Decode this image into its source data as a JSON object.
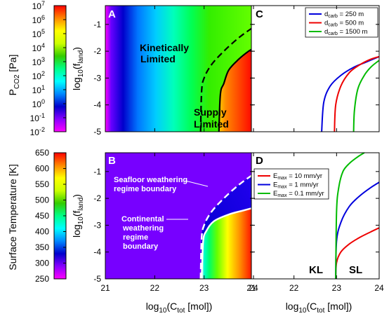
{
  "colorbars": {
    "pco2": {
      "label_main": "P",
      "label_sub": "CO2",
      "label_unit": " [Pa]",
      "ticks": [
        {
          "base": "10",
          "exp": "7",
          "value": 7
        },
        {
          "base": "10",
          "exp": "6",
          "value": 6
        },
        {
          "base": "10",
          "exp": "5",
          "value": 5
        },
        {
          "base": "10",
          "exp": "4",
          "value": 4
        },
        {
          "base": "10",
          "exp": "3",
          "value": 3
        },
        {
          "base": "10",
          "exp": "2",
          "value": 2
        },
        {
          "base": "10",
          "exp": "1",
          "value": 1
        },
        {
          "base": "10",
          "exp": "0",
          "value": 0
        },
        {
          "base": "10",
          "exp": "-1",
          "value": -1
        },
        {
          "base": "10",
          "exp": "-2",
          "value": -2
        }
      ],
      "range_log10": [
        -2,
        7
      ],
      "colors": [
        "#ff00ff",
        "#8800ff",
        "#0000cc",
        "#0088ff",
        "#00ffff",
        "#00ff88",
        "#33cc00",
        "#ccff00",
        "#ffff00",
        "#ff8800",
        "#ff0000"
      ]
    },
    "temperature": {
      "label": "Surface Temperature [K]",
      "ticks": [
        "650",
        "600",
        "550",
        "500",
        "450",
        "400",
        "350",
        "300",
        "250"
      ],
      "range": [
        250,
        650
      ],
      "colors": [
        "#ff00ff",
        "#8800ff",
        "#0000cc",
        "#0088ff",
        "#00ffff",
        "#00ff88",
        "#33cc00",
        "#ccff00",
        "#ffff00",
        "#ff8800",
        "#ff0000"
      ]
    }
  },
  "axes": {
    "xlabel_main": "log",
    "xlabel_base": "10",
    "xlabel_rest": "(C",
    "xlabel_sub": "tot",
    "xlabel_unit": " [mol])",
    "ylabel_main": "log",
    "ylabel_base": "10",
    "ylabel_rest": "(f",
    "ylabel_sub": "land",
    "ylabel_close": ")",
    "xticks": [
      "21",
      "22",
      "23",
      "24"
    ],
    "yticks": [
      "-1",
      "-2",
      "-3",
      "-4",
      "-5"
    ],
    "xlim": [
      21,
      24
    ],
    "ylim": [
      -5,
      -0.3
    ]
  },
  "panels": {
    "A": {
      "letter": "A",
      "label_kinetic_1": "Kinetically",
      "label_kinetic_2": "Limited",
      "label_supply_1": "Supply",
      "label_supply_2": "Limited"
    },
    "B": {
      "letter": "B",
      "label_seafloor_1": "Seafloor weathering",
      "label_seafloor_2": "regime boundary",
      "label_cont_1": "Continental",
      "label_cont_2": "weathering",
      "label_cont_3": "regime",
      "label_cont_4": "boundary"
    },
    "C": {
      "letter": "C"
    },
    "D": {
      "letter": "D",
      "label_kl": "KL",
      "label_sl": "SL"
    }
  },
  "chart_data": [
    {
      "type": "heatmap",
      "panel": "A",
      "quantity": "PCO2",
      "xlabel": "log10(Ctot [mol])",
      "ylabel": "log10(fland)",
      "xlim": [
        21,
        24
      ],
      "ylim": [
        -5,
        -0.3
      ],
      "curves": [
        {
          "role": "supply-kinetic boundary",
          "style": "solid",
          "color": "#000000",
          "x": [
            23.3,
            23.33,
            23.4,
            23.5,
            23.7,
            23.9,
            24.0
          ],
          "y": [
            -5.0,
            -3.6,
            -3.2,
            -2.7,
            -2.3,
            -2.0,
            -1.9
          ]
        },
        {
          "role": "boundary (dashed)",
          "style": "dashed",
          "color": "#000000",
          "x": [
            22.93,
            22.95,
            23.0,
            23.15,
            23.4,
            23.7,
            24.0
          ],
          "y": [
            -5.0,
            -3.5,
            -3.0,
            -2.5,
            -2.0,
            -1.5,
            -1.1
          ]
        }
      ]
    },
    {
      "type": "heatmap",
      "panel": "B",
      "quantity": "Surface Temperature",
      "xlabel": "log10(Ctot [mol])",
      "ylabel": "log10(fland)",
      "xlim": [
        21,
        24
      ],
      "ylim": [
        -5,
        -0.3
      ],
      "curves": [
        {
          "role": "Continental weathering regime boundary",
          "style": "solid",
          "color": "#ffffff",
          "x": [
            22.95,
            22.98,
            23.05,
            23.2,
            23.5,
            23.8,
            24.0
          ],
          "y": [
            -5.0,
            -3.6,
            -3.2,
            -2.85,
            -2.6,
            -2.45,
            -2.35
          ]
        },
        {
          "role": "Seafloor weathering regime boundary",
          "style": "dashed",
          "color": "#ffffff",
          "x": [
            22.93,
            22.95,
            23.0,
            23.15,
            23.4,
            23.7,
            24.0
          ],
          "y": [
            -5.0,
            -3.5,
            -3.0,
            -2.5,
            -2.0,
            -1.5,
            -1.1
          ]
        }
      ]
    },
    {
      "type": "line",
      "panel": "C",
      "xlabel": "log10(Ctot [mol])",
      "xlim": [
        21,
        24
      ],
      "ylim": [
        -5,
        -0.3
      ],
      "legend_position": "top-right",
      "series": [
        {
          "name_main": "d",
          "name_sub": "carb",
          "name_rest": " = 250 m",
          "color": "#0000dd",
          "x": [
            22.65,
            22.7,
            22.85,
            23.1,
            23.4,
            23.7,
            24.0
          ],
          "y": [
            -5.0,
            -3.9,
            -3.3,
            -2.9,
            -2.6,
            -2.4,
            -2.2
          ]
        },
        {
          "name_main": "d",
          "name_sub": "carb",
          "name_rest": " = 500 m",
          "color": "#ee0000",
          "x": [
            22.95,
            22.98,
            23.1,
            23.3,
            23.55,
            23.8,
            24.0
          ],
          "y": [
            -5.0,
            -4.0,
            -3.3,
            -2.8,
            -2.5,
            -2.3,
            -2.2
          ]
        },
        {
          "name_main": "d",
          "name_sub": "carb",
          "name_rest": " = 1500 m",
          "color": "#00bb00",
          "x": [
            23.4,
            23.42,
            23.5,
            23.65,
            23.8,
            23.95,
            24.0
          ],
          "y": [
            -5.0,
            -4.2,
            -3.4,
            -2.9,
            -2.6,
            -2.4,
            -2.35
          ]
        }
      ]
    },
    {
      "type": "line",
      "panel": "D",
      "xlabel": "log10(Ctot [mol])",
      "xlim": [
        21,
        24
      ],
      "ylim": [
        -5,
        -0.3
      ],
      "legend_position": "top-left",
      "series": [
        {
          "name_main": "E",
          "name_sub": "max",
          "name_rest": " = 10 mm/yr",
          "color": "#ee0000",
          "x": [
            22.98,
            23.0,
            23.1,
            23.3,
            23.55,
            23.8,
            24.0
          ],
          "y": [
            -5.0,
            -4.4,
            -4.0,
            -3.7,
            -3.45,
            -3.25,
            -3.1
          ]
        },
        {
          "name_main": "E",
          "name_sub": "max",
          "name_rest": " = 1 mm/yr",
          "color": "#0000dd",
          "x": [
            22.98,
            23.0,
            23.1,
            23.3,
            23.55,
            23.8,
            24.0
          ],
          "y": [
            -5.0,
            -3.6,
            -2.9,
            -2.3,
            -1.9,
            -1.6,
            -1.4
          ]
        },
        {
          "name_main": "E",
          "name_sub": "max",
          "name_rest": " = 0.1 mm/yr",
          "color": "#00bb00",
          "x": [
            22.98,
            23.0,
            23.05,
            23.15,
            23.3,
            23.5,
            23.65
          ],
          "y": [
            -5.0,
            -2.5,
            -1.6,
            -1.0,
            -0.7,
            -0.45,
            -0.3
          ]
        }
      ]
    }
  ]
}
